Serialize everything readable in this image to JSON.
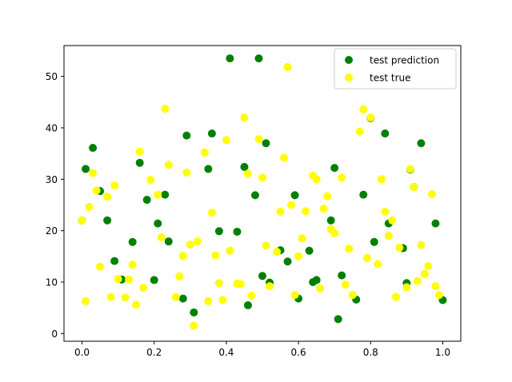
{
  "chart_data": {
    "type": "scatter",
    "xlim": [
      -0.05,
      1.05
    ],
    "ylim": [
      -1.5,
      56
    ],
    "x_ticks": [
      {
        "value": 0.0,
        "label": "0.0"
      },
      {
        "value": 0.2,
        "label": "0.2"
      },
      {
        "value": 0.4,
        "label": "0.4"
      },
      {
        "value": 0.6,
        "label": "0.6"
      },
      {
        "value": 0.8,
        "label": "0.8"
      },
      {
        "value": 1.0,
        "label": "1.0"
      }
    ],
    "y_ticks": [
      {
        "value": 0,
        "label": "0"
      },
      {
        "value": 10,
        "label": "10"
      },
      {
        "value": 20,
        "label": "20"
      },
      {
        "value": 30,
        "label": "30"
      },
      {
        "value": 40,
        "label": "40"
      },
      {
        "value": 50,
        "label": "50"
      }
    ],
    "grid": false,
    "legend_position": "top-right",
    "series": [
      {
        "name": "test prediction",
        "color": "#008000",
        "points": [
          [
            0.0,
            22.0
          ],
          [
            0.01,
            32.0
          ],
          [
            0.03,
            36.1
          ],
          [
            0.05,
            27.7
          ],
          [
            0.07,
            22.0
          ],
          [
            0.09,
            14.1
          ],
          [
            0.11,
            10.5
          ],
          [
            0.14,
            17.8
          ],
          [
            0.16,
            33.2
          ],
          [
            0.18,
            26.0
          ],
          [
            0.2,
            10.4
          ],
          [
            0.21,
            21.4
          ],
          [
            0.23,
            27.0
          ],
          [
            0.24,
            17.9
          ],
          [
            0.28,
            6.8
          ],
          [
            0.29,
            38.5
          ],
          [
            0.31,
            4.1
          ],
          [
            0.35,
            32.0
          ],
          [
            0.36,
            38.9
          ],
          [
            0.38,
            19.9
          ],
          [
            0.41,
            53.5
          ],
          [
            0.43,
            19.8
          ],
          [
            0.45,
            32.4
          ],
          [
            0.46,
            5.5
          ],
          [
            0.48,
            26.9
          ],
          [
            0.49,
            53.5
          ],
          [
            0.5,
            11.2
          ],
          [
            0.51,
            37.0
          ],
          [
            0.52,
            9.9
          ],
          [
            0.55,
            16.2
          ],
          [
            0.57,
            14.0
          ],
          [
            0.59,
            26.9
          ],
          [
            0.6,
            6.8
          ],
          [
            0.63,
            16.1
          ],
          [
            0.64,
            10.0
          ],
          [
            0.65,
            10.4
          ],
          [
            0.69,
            22.0
          ],
          [
            0.7,
            32.2
          ],
          [
            0.71,
            2.8
          ],
          [
            0.72,
            11.3
          ],
          [
            0.76,
            6.6
          ],
          [
            0.78,
            27.0
          ],
          [
            0.8,
            41.9
          ],
          [
            0.81,
            17.8
          ],
          [
            0.84,
            38.9
          ],
          [
            0.85,
            21.4
          ],
          [
            0.89,
            16.6
          ],
          [
            0.9,
            9.8
          ],
          [
            0.91,
            31.9
          ],
          [
            0.92,
            28.5
          ],
          [
            0.94,
            37.0
          ],
          [
            0.98,
            21.4
          ],
          [
            1.0,
            6.5
          ]
        ]
      },
      {
        "name": "test true",
        "color": "#ffff00",
        "points": [
          [
            0.0,
            22.0
          ],
          [
            0.01,
            6.3
          ],
          [
            0.02,
            24.6
          ],
          [
            0.03,
            31.2
          ],
          [
            0.04,
            27.8
          ],
          [
            0.05,
            13.0
          ],
          [
            0.07,
            26.6
          ],
          [
            0.08,
            7.1
          ],
          [
            0.09,
            28.8
          ],
          [
            0.1,
            10.6
          ],
          [
            0.12,
            7.0
          ],
          [
            0.13,
            10.5
          ],
          [
            0.14,
            13.4
          ],
          [
            0.15,
            5.6
          ],
          [
            0.16,
            35.4
          ],
          [
            0.17,
            8.9
          ],
          [
            0.19,
            29.9
          ],
          [
            0.21,
            27.0
          ],
          [
            0.22,
            18.7
          ],
          [
            0.23,
            43.7
          ],
          [
            0.24,
            32.8
          ],
          [
            0.26,
            7.1
          ],
          [
            0.27,
            11.1
          ],
          [
            0.28,
            15.1
          ],
          [
            0.29,
            31.3
          ],
          [
            0.3,
            17.3
          ],
          [
            0.31,
            1.5
          ],
          [
            0.32,
            17.9
          ],
          [
            0.34,
            35.2
          ],
          [
            0.35,
            6.3
          ],
          [
            0.36,
            23.5
          ],
          [
            0.37,
            15.2
          ],
          [
            0.38,
            9.8
          ],
          [
            0.39,
            6.5
          ],
          [
            0.4,
            37.6
          ],
          [
            0.41,
            16.1
          ],
          [
            0.43,
            9.7
          ],
          [
            0.44,
            9.6
          ],
          [
            0.45,
            42.0
          ],
          [
            0.46,
            31.1
          ],
          [
            0.47,
            7.4
          ],
          [
            0.49,
            37.8
          ],
          [
            0.5,
            30.3
          ],
          [
            0.51,
            17.1
          ],
          [
            0.52,
            9.2
          ],
          [
            0.54,
            15.9
          ],
          [
            0.55,
            23.7
          ],
          [
            0.56,
            34.2
          ],
          [
            0.57,
            51.8
          ],
          [
            0.58,
            25.0
          ],
          [
            0.59,
            7.5
          ],
          [
            0.6,
            15.0
          ],
          [
            0.61,
            18.5
          ],
          [
            0.62,
            23.8
          ],
          [
            0.64,
            30.7
          ],
          [
            0.65,
            30.0
          ],
          [
            0.66,
            8.8
          ],
          [
            0.67,
            24.3
          ],
          [
            0.68,
            26.7
          ],
          [
            0.69,
            20.3
          ],
          [
            0.7,
            19.5
          ],
          [
            0.72,
            30.3
          ],
          [
            0.73,
            9.5
          ],
          [
            0.74,
            16.5
          ],
          [
            0.75,
            7.5
          ],
          [
            0.77,
            39.3
          ],
          [
            0.78,
            43.6
          ],
          [
            0.79,
            14.7
          ],
          [
            0.8,
            42.0
          ],
          [
            0.82,
            13.5
          ],
          [
            0.83,
            30.0
          ],
          [
            0.84,
            23.7
          ],
          [
            0.85,
            19.0
          ],
          [
            0.86,
            22.0
          ],
          [
            0.87,
            7.1
          ],
          [
            0.88,
            16.7
          ],
          [
            0.9,
            9.0
          ],
          [
            0.91,
            32.0
          ],
          [
            0.92,
            28.5
          ],
          [
            0.93,
            10.2
          ],
          [
            0.94,
            17.2
          ],
          [
            0.95,
            11.6
          ],
          [
            0.96,
            13.1
          ],
          [
            0.97,
            27.1
          ],
          [
            0.98,
            9.2
          ],
          [
            0.99,
            7.5
          ]
        ]
      }
    ]
  }
}
